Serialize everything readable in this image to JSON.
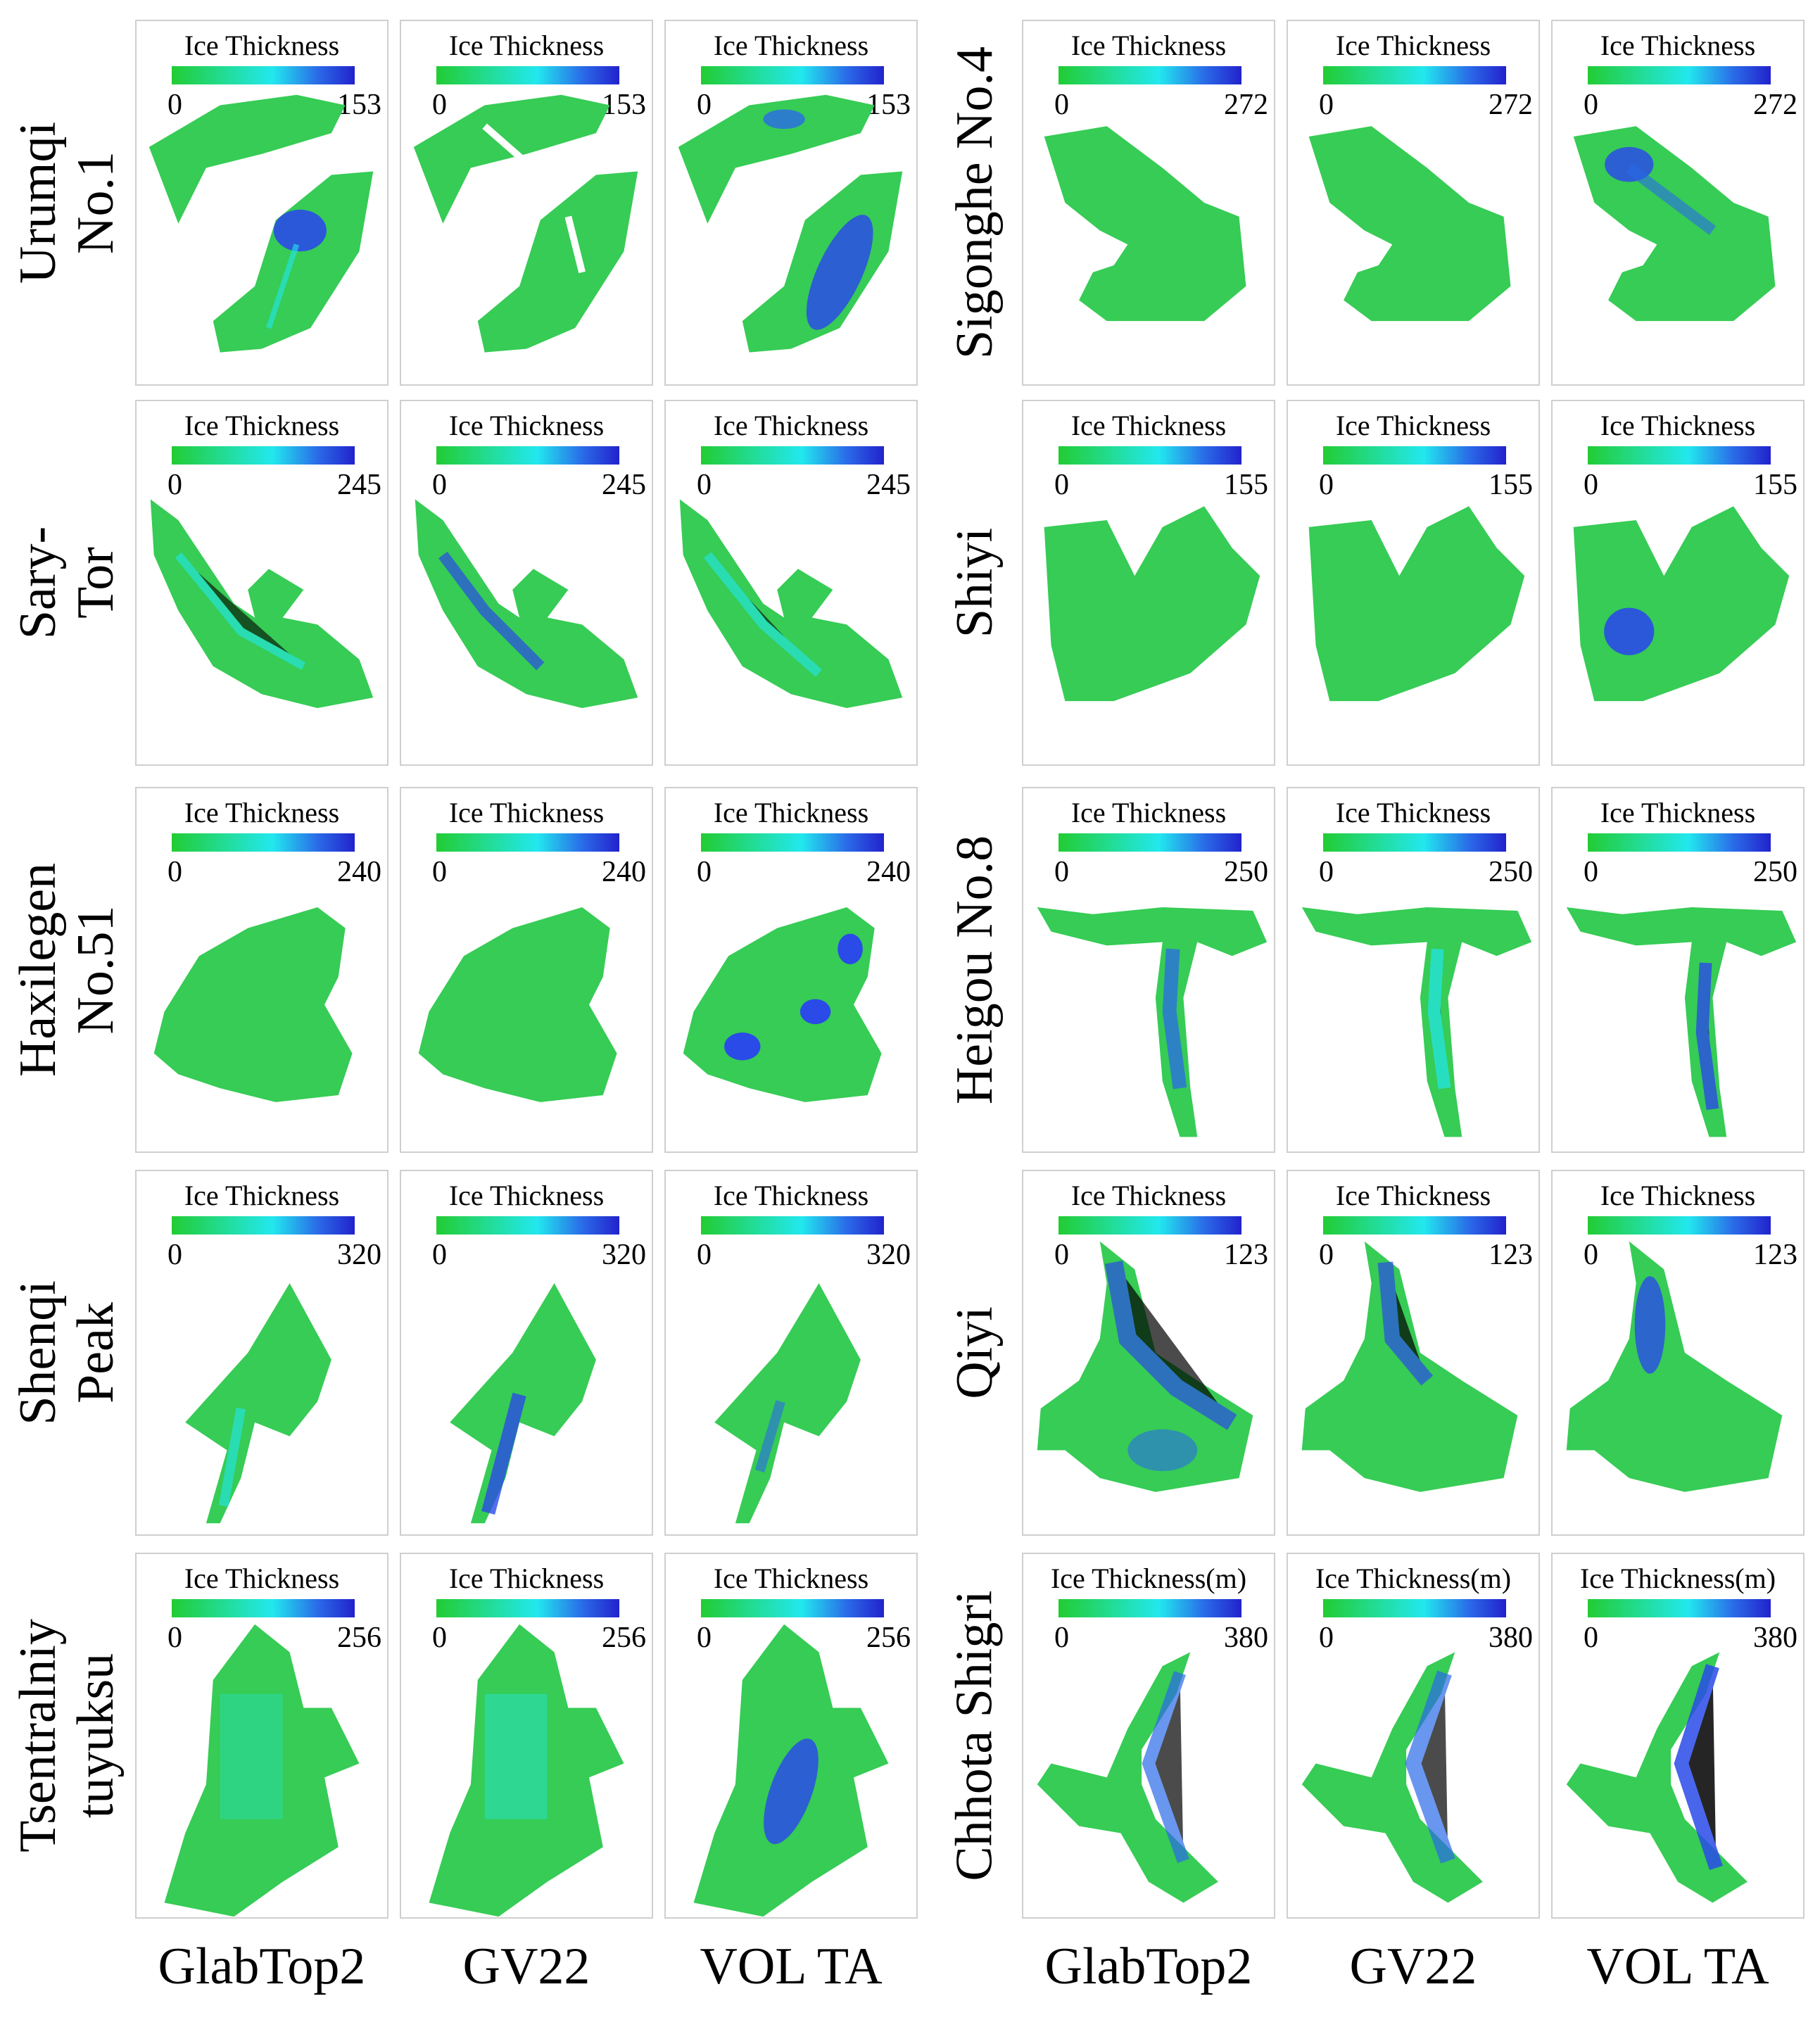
{
  "columns": {
    "left": [
      "GlabTop2",
      "GV22",
      "VOL TA"
    ],
    "right": [
      "GlabTop2",
      "GV22",
      "VOL TA"
    ]
  },
  "rows_left": [
    {
      "glacier": "Urumqi No.1",
      "legend_title": "Ice Thickness",
      "min": "0",
      "max": "153"
    },
    {
      "glacier": "Sary-Tor",
      "legend_title": "Ice Thickness",
      "min": "0",
      "max": "245"
    },
    {
      "glacier": "Haxilegen No.51",
      "legend_title": "Ice Thickness",
      "min": "0",
      "max": "240"
    },
    {
      "glacier": "Shenqi Peak",
      "legend_title": "Ice Thickness",
      "min": "0",
      "max": "320"
    },
    {
      "glacier": "Tsentralniy tuyuksu",
      "legend_title": "Ice Thickness",
      "min": "0",
      "max": "256"
    }
  ],
  "rows_right": [
    {
      "glacier": "Sigonghe No.4",
      "legend_title": "Ice Thickness",
      "min": "0",
      "max": "272"
    },
    {
      "glacier": "Shiyi",
      "legend_title": "Ice Thickness",
      "min": "0",
      "max": "155"
    },
    {
      "glacier": "Heigou No.8",
      "legend_title": "Ice Thickness",
      "min": "0",
      "max": "250"
    },
    {
      "glacier": "Qiyi",
      "legend_title": "Ice Thickness",
      "min": "0",
      "max": "123"
    },
    {
      "glacier": "Chhota Shigri",
      "legend_title": "Ice Thickness(m)",
      "min": "0",
      "max": "380"
    }
  ],
  "colors": {
    "colorbar": [
      "#22cc33",
      "#22dd99",
      "#22e8ee",
      "#2a6ae8",
      "#2222cc"
    ],
    "glacier_base": "#36cc55",
    "panel_border": "#cfcfcf"
  }
}
